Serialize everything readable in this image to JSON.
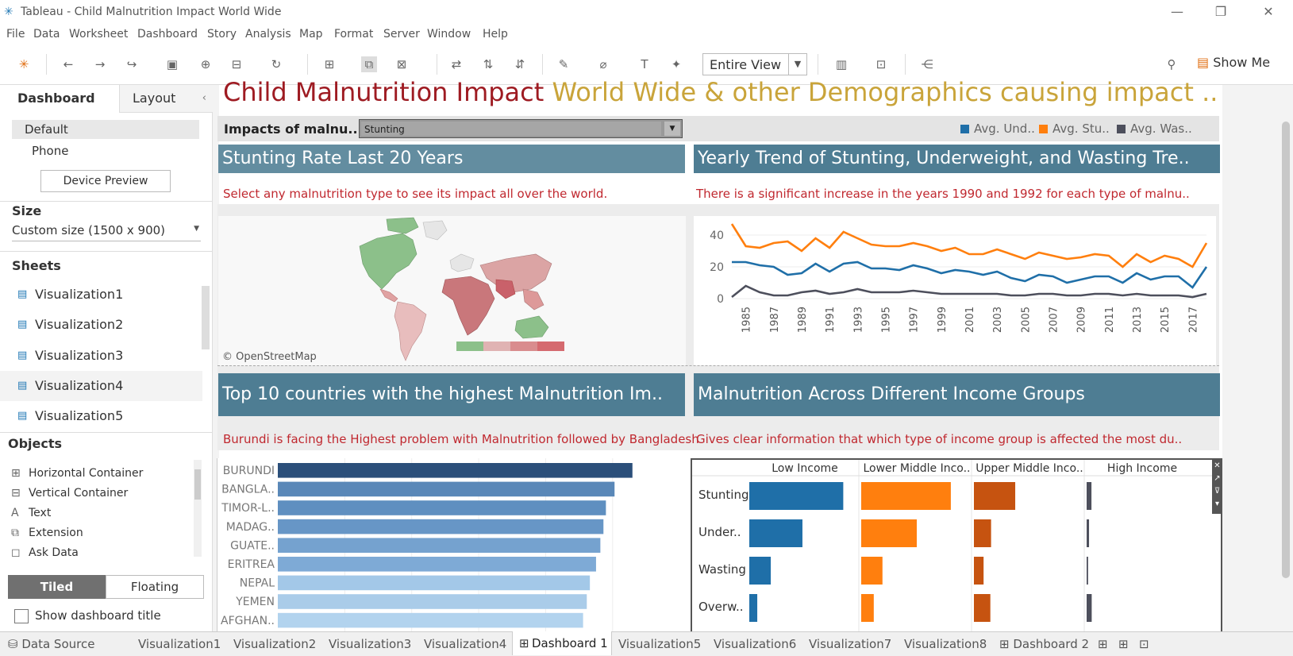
{
  "window": {
    "title": "Tableau - Child Malnutrition Impact World Wide",
    "controls": [
      "minimize-icon",
      "restore-icon",
      "close-icon"
    ]
  },
  "menu": [
    "File",
    "Data",
    "Worksheet",
    "Dashboard",
    "Story",
    "Analysis",
    "Map",
    "Format",
    "Server",
    "Window",
    "Help"
  ],
  "toolbar": {
    "view_select": "Entire View",
    "show_me": "Show Me"
  },
  "left_panel": {
    "tabs": [
      "Dashboard",
      "Layout"
    ],
    "devices": [
      "Default",
      "Phone"
    ],
    "device_preview": "Device Preview",
    "size_title": "Size",
    "size_value": "Custom size (1500 x 900)",
    "sheets_title": "Sheets",
    "sheets": [
      "Visualization1",
      "Visualization2",
      "Visualization3",
      "Visualization4",
      "Visualization5"
    ],
    "objects_title": "Objects",
    "objects": [
      "Horizontal Container",
      "Vertical Container",
      "Text",
      "Extension",
      "Ask Data"
    ],
    "tiled": "Tiled",
    "floating": "Floating",
    "show_title": "Show dashboard title"
  },
  "dashboard": {
    "title_part1": "Child Malnutrition Impact",
    "title_part2": "World Wide & other Demographics causing impact ..",
    "filter_label": "Impacts of malnu..",
    "filter_value": "Stunting",
    "legend": [
      {
        "label": "Avg. Und..",
        "color": "#1f6fa8"
      },
      {
        "label": "Avg. Stu..",
        "color": "#ff7f0e"
      },
      {
        "label": "Avg. Was..",
        "color": "#4d4f5c"
      }
    ],
    "panels": {
      "map_title": "Stunting Rate Last 20 Years",
      "map_caption": "Select any malnutrition type to see its impact all over the world.",
      "map_credit": "© OpenStreetMap",
      "trend_title": "Yearly Trend of Stunting, Underweight, and Wasting Tre..",
      "trend_caption": "There is a significant increase in the years 1990 and 1992 for each type of malnu..",
      "top10_title": "Top 10 countries with the highest Malnutrition Im..",
      "top10_caption": "Burundi is facing the Highest problem with Malnutrition followed by Bangladesh",
      "income_title": "Malnutrition Across Different Income Groups",
      "income_caption": "Gives clear information that which type of income group is affected the most du.."
    }
  },
  "chart_data": [
    {
      "type": "line",
      "x": [
        1984,
        1985,
        1986,
        1987,
        1988,
        1989,
        1990,
        1991,
        1992,
        1993,
        1994,
        1995,
        1996,
        1997,
        1998,
        1999,
        2000,
        2001,
        2002,
        2003,
        2004,
        2005,
        2006,
        2007,
        2008,
        2009,
        2010,
        2011,
        2012,
        2013,
        2014,
        2015,
        2016,
        2017,
        2018
      ],
      "x_tick_labels": [
        "1985",
        "1987",
        "1989",
        "1991",
        "1993",
        "1995",
        "1997",
        "1999",
        "2001",
        "2003",
        "2005",
        "2007",
        "2009",
        "2011",
        "2013",
        "2015",
        "2017"
      ],
      "y_ticks": [
        "0",
        "20",
        "40"
      ],
      "ylim": [
        -2,
        48
      ],
      "series": [
        {
          "color": "#ff7f0e",
          "values": [
            47,
            33,
            32,
            35,
            36,
            30,
            38,
            32,
            42,
            38,
            34,
            33,
            33,
            35,
            33,
            30,
            32,
            28,
            28,
            31,
            28,
            25,
            29,
            27,
            25,
            26,
            28,
            27,
            20,
            28,
            23,
            27,
            25,
            20,
            35
          ]
        },
        {
          "color": "#1f6fa8",
          "values": [
            23,
            23,
            21,
            20,
            15,
            16,
            22,
            17,
            22,
            23,
            19,
            19,
            18,
            21,
            19,
            16,
            18,
            17,
            15,
            17,
            13,
            11,
            15,
            14,
            10,
            12,
            14,
            14,
            10,
            16,
            12,
            14,
            14,
            7,
            20
          ]
        },
        {
          "color": "#4d4f5c",
          "values": [
            1,
            8,
            4,
            2,
            2,
            4,
            5,
            3,
            4,
            6,
            4,
            4,
            4,
            5,
            4,
            3,
            3,
            3,
            3,
            3,
            2,
            2,
            3,
            3,
            2,
            2,
            3,
            3,
            2,
            3,
            2,
            2,
            2,
            1,
            3
          ]
        }
      ]
    },
    {
      "type": "bar",
      "categories": [
        "BURUNDI",
        "BANGLA..",
        "TIMOR-L..",
        "MADAG..",
        "GUATE..",
        "ERITREA",
        "NEPAL",
        "YEMEN",
        "AFGHAN.."
      ],
      "values": [
        57.5,
        54.6,
        53.2,
        52.8,
        52.3,
        51.6,
        50.6,
        50.1,
        49.5
      ],
      "colors": [
        "#2b4f7a",
        "#5a88b8",
        "#5f8fc0",
        "#6796c6",
        "#75a2cf",
        "#7eaad6",
        "#a3c8e8",
        "#aacce9",
        "#b2d3ee"
      ]
    },
    {
      "type": "bar",
      "columns": [
        "Low Income",
        "Lower Middle Inco..",
        "Upper Middle Inco..",
        "High Income"
      ],
      "rows": [
        "Stunting",
        "Under..",
        "Wasting",
        "Overw.."
      ],
      "column_colors": [
        "#1f6fa8",
        "#ff7f0e",
        "#c65310",
        "#4d4f5c"
      ],
      "values": [
        [
          38.9,
          37.1,
          17.1,
          2.0
        ],
        [
          22.0,
          23.0,
          7.1,
          1.0
        ],
        [
          8.9,
          8.8,
          4.0,
          0.6
        ],
        [
          3.3,
          5.2,
          6.8,
          2.1
        ]
      ],
      "max": 46
    }
  ],
  "bottom_tabs": [
    {
      "label": "Data Source",
      "icon": "database-icon"
    },
    {
      "label": "Visualization1"
    },
    {
      "label": "Visualization2"
    },
    {
      "label": "Visualization3"
    },
    {
      "label": "Visualization4"
    },
    {
      "label": "Dashboard 1",
      "icon": "dashboard-icon",
      "active": true
    },
    {
      "label": "Visualization5"
    },
    {
      "label": "Visualization6"
    },
    {
      "label": "Visualization7"
    },
    {
      "label": "Visualization8"
    },
    {
      "label": "Dashboard 2",
      "icon": "dashboard-icon"
    }
  ]
}
